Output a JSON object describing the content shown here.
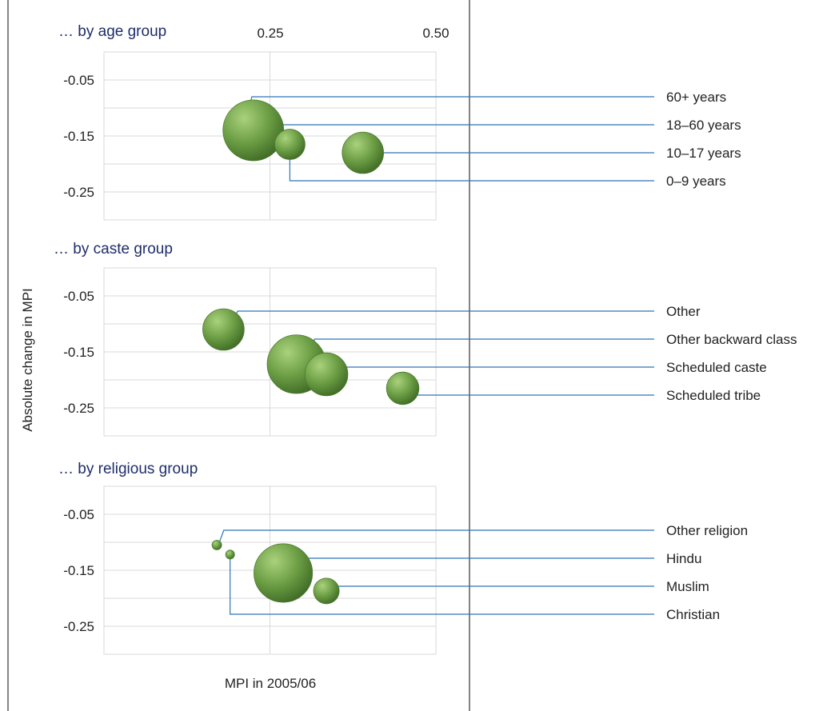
{
  "chart_data": {
    "type": "scatter",
    "subtype": "bubble",
    "xlabel": "MPI in 2005/06",
    "ylabel": "Absolute change in MPI",
    "x_ticks": [
      "0.25",
      "0.50"
    ],
    "y_ticks": [
      "-0.05",
      "-0.15",
      "-0.25"
    ],
    "xlim": [
      0,
      0.5
    ],
    "ylim": [
      -0.3,
      0
    ],
    "grid": true,
    "accent_color": "#5a8a3a",
    "leader_color": "#2e75b6",
    "panels": [
      {
        "title": "… by age group",
        "points": [
          {
            "label": "60+ years",
            "x": 0.21,
            "y": -0.12,
            "size": 2
          },
          {
            "label": "18–60 years",
            "x": 0.225,
            "y": -0.14,
            "size": 28
          },
          {
            "label": "10–17 years",
            "x": 0.39,
            "y": -0.18,
            "size": 13
          },
          {
            "label": "0–9 years",
            "x": 0.28,
            "y": -0.165,
            "size": 7
          }
        ]
      },
      {
        "title": "… by caste group",
        "points": [
          {
            "label": "Other",
            "x": 0.18,
            "y": -0.11,
            "size": 13
          },
          {
            "label": "Other backward class",
            "x": 0.29,
            "y": -0.172,
            "size": 26
          },
          {
            "label": "Scheduled caste",
            "x": 0.335,
            "y": -0.19,
            "size": 14
          },
          {
            "label": "Scheduled tribe",
            "x": 0.45,
            "y": -0.215,
            "size": 8
          }
        ]
      },
      {
        "title": "… by religious group",
        "points": [
          {
            "label": "Other religion",
            "x": 0.17,
            "y": -0.105,
            "size": 0.7
          },
          {
            "label": "Hindu",
            "x": 0.27,
            "y": -0.155,
            "size": 26
          },
          {
            "label": "Muslim",
            "x": 0.335,
            "y": -0.187,
            "size": 5
          },
          {
            "label": "Christian",
            "x": 0.19,
            "y": -0.122,
            "size": 0.6
          }
        ]
      }
    ]
  }
}
